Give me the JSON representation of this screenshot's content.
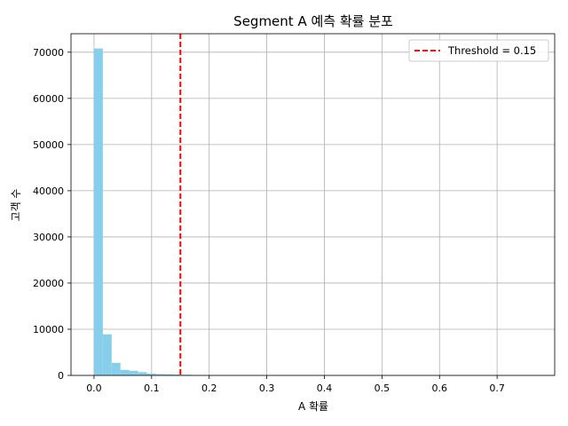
{
  "chart_data": {
    "type": "histogram",
    "title": "Segment A 예측 확률 분포",
    "xlabel": "A 확률",
    "ylabel": "고객 수",
    "xlim": [
      -0.04,
      0.8
    ],
    "ylim": [
      0,
      74000
    ],
    "xticks": [
      "0.0",
      "0.1",
      "0.2",
      "0.3",
      "0.4",
      "0.5",
      "0.6",
      "0.7"
    ],
    "yticks": [
      "0",
      "10000",
      "20000",
      "30000",
      "40000",
      "50000",
      "60000",
      "70000"
    ],
    "grid": true,
    "bar_color": "#87CEEB",
    "bin_width": 0.0153,
    "bins": [
      {
        "x0": 0.0,
        "count": 70800
      },
      {
        "x0": 0.0153,
        "count": 8900
      },
      {
        "x0": 0.0306,
        "count": 2700
      },
      {
        "x0": 0.0459,
        "count": 1200
      },
      {
        "x0": 0.0612,
        "count": 1000
      },
      {
        "x0": 0.0765,
        "count": 700
      },
      {
        "x0": 0.0918,
        "count": 400
      },
      {
        "x0": 0.1071,
        "count": 300
      },
      {
        "x0": 0.1224,
        "count": 250
      },
      {
        "x0": 0.1377,
        "count": 200
      },
      {
        "x0": 0.153,
        "count": 150
      },
      {
        "x0": 0.1683,
        "count": 80
      },
      {
        "x0": 0.1836,
        "count": 40
      },
      {
        "x0": 0.1989,
        "count": 25
      },
      {
        "x0": 0.2142,
        "count": 15
      },
      {
        "x0": 0.2295,
        "count": 10
      },
      {
        "x0": 0.2448,
        "count": 8
      },
      {
        "x0": 0.2601,
        "count": 5
      }
    ],
    "threshold": {
      "value": 0.15,
      "label": "Threshold = 0.15",
      "color": "#ff0000"
    },
    "legend_position": "top-right"
  }
}
